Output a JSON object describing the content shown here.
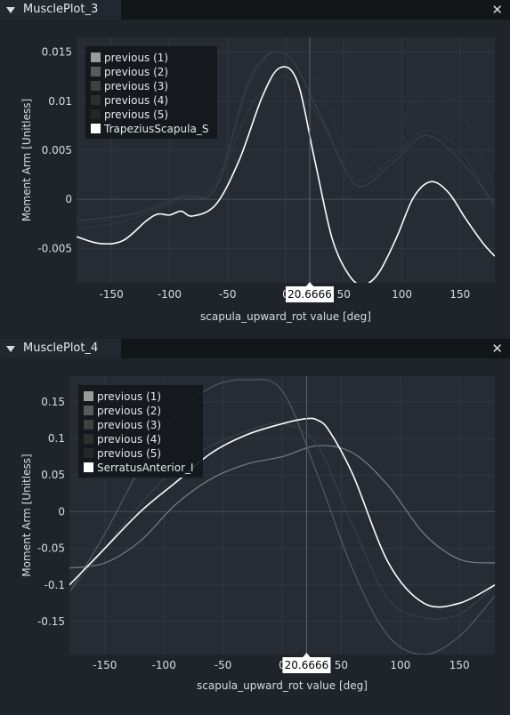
{
  "panels": [
    {
      "title": "MusclePlot_3",
      "close_label": "✕",
      "chart_data": {
        "type": "line",
        "xlabel": "scapula_upward_rot value [deg]",
        "ylabel": "Moment Arm [Unitless]",
        "xlim": [
          -180,
          180
        ],
        "ylim": [
          -0.0085,
          0.0165
        ],
        "x_ticks": [
          "-150",
          "-100",
          "-50",
          "0",
          "50",
          "100",
          "150"
        ],
        "y_ticks": [
          "0.015",
          "0.01",
          "0.005",
          "0",
          "-0.005"
        ],
        "cursor_value": "20.6666",
        "grid": true,
        "legend": [
          "previous (1)",
          "previous (2)",
          "previous (3)",
          "previous (4)",
          "previous (5)",
          "TrapeziusScapula_S"
        ],
        "series": [
          {
            "name": "previous (5)",
            "x": [
              -180,
              -150,
              -120,
              -90,
              -60,
              -30,
              0,
              30,
              60,
              90,
              120,
              150,
              180
            ],
            "y": [
              -0.0025,
              -0.002,
              -0.001,
              0.0005,
              0.002,
              0.012,
              0.0155,
              0.011,
              0.003,
              0.006,
              0.011,
              0.009,
              0.001
            ]
          },
          {
            "name": "previous (4)",
            "x": [
              -180,
              -150,
              -120,
              -90,
              -60,
              -30,
              0,
              30,
              60,
              90,
              120,
              150,
              180
            ],
            "y": [
              -0.003,
              -0.0025,
              -0.0015,
              0,
              0.0015,
              0.0095,
              0.0125,
              0.008,
              0.002,
              0.004,
              0.007,
              0.005,
              -0.001
            ]
          },
          {
            "name": "previous (3)",
            "x": [
              -180,
              -150,
              -120,
              -90,
              -60,
              -30,
              0,
              30,
              60,
              90,
              120,
              150,
              180
            ],
            "y": [
              -0.0022,
              -0.0018,
              -0.0012,
              0.0003,
              0.0012,
              0.0125,
              0.0148,
              0.0085,
              0.0015,
              0.0035,
              0.0065,
              0.004,
              -0.0005
            ]
          },
          {
            "name": "TrapeziusScapula_S",
            "x": [
              -180,
              -160,
              -140,
              -120,
              -110,
              -100,
              -90,
              -80,
              -60,
              -40,
              -20,
              -5,
              10,
              25,
              40,
              55,
              67,
              80,
              95,
              110,
              125,
              140,
              155,
              170,
              180
            ],
            "y": [
              -0.0038,
              -0.0045,
              -0.0042,
              -0.0022,
              -0.0015,
              -0.0016,
              -0.0012,
              -0.0017,
              -0.0005,
              0.004,
              0.0105,
              0.0134,
              0.012,
              0.004,
              -0.004,
              -0.0078,
              -0.0087,
              -0.0075,
              -0.004,
              0.0002,
              0.0018,
              0.0007,
              -0.002,
              -0.0045,
              -0.0058
            ]
          }
        ]
      }
    },
    {
      "title": "MusclePlot_4",
      "close_label": "✕",
      "chart_data": {
        "type": "line",
        "xlabel": "scapula_upward_rot value [deg]",
        "ylabel": "Moment Arm [Unitless]",
        "xlim": [
          -180,
          180
        ],
        "ylim": [
          -0.195,
          0.185
        ],
        "x_ticks": [
          "-150",
          "-100",
          "-50",
          "0",
          "50",
          "100",
          "150"
        ],
        "y_ticks": [
          "0.15",
          "0.1",
          "0.05",
          "0",
          "-0.05",
          "-0.1",
          "-0.15"
        ],
        "cursor_value": "20.6666",
        "grid": true,
        "legend": [
          "previous (1)",
          "previous (2)",
          "previous (3)",
          "previous (4)",
          "previous (5)",
          "SerratusAnterior_I"
        ],
        "series": [
          {
            "name": "previous (1)",
            "x": [
              -180,
              -150,
              -120,
              -90,
              -60,
              -30,
              0,
              30,
              60,
              90,
              120,
              150,
              180
            ],
            "y": [
              -0.077,
              -0.07,
              -0.04,
              0.01,
              0.045,
              0.065,
              0.075,
              0.09,
              0.08,
              0.035,
              -0.03,
              -0.065,
              -0.07
            ]
          },
          {
            "name": "previous (2)",
            "x": [
              -180,
              -150,
              -120,
              -90,
              -60,
              -30,
              0,
              30,
              60,
              90,
              120,
              150,
              180
            ],
            "y": [
              -0.11,
              -0.03,
              0.06,
              0.13,
              0.17,
              0.18,
              0.165,
              0.05,
              -0.08,
              -0.17,
              -0.195,
              -0.17,
              -0.115
            ]
          },
          {
            "name": "previous (3)",
            "x": [
              -180,
              -150,
              -120,
              -90,
              -60,
              -30,
              0,
              30,
              60,
              90,
              120,
              150,
              180
            ],
            "y": [
              -0.11,
              -0.05,
              0.01,
              0.06,
              0.09,
              0.11,
              0.12,
              0.09,
              -0.02,
              -0.12,
              -0.145,
              -0.14,
              -0.1
            ]
          },
          {
            "name": "SerratusAnterior_I",
            "x": [
              -180,
              -150,
              -120,
              -90,
              -60,
              -30,
              0,
              20,
              30,
              40,
              60,
              90,
              120,
              150,
              180
            ],
            "y": [
              -0.1,
              -0.05,
              0.0,
              0.04,
              0.08,
              0.105,
              0.12,
              0.127,
              0.125,
              0.11,
              0.05,
              -0.07,
              -0.125,
              -0.125,
              -0.1
            ]
          }
        ]
      }
    }
  ],
  "colors": {
    "background": "#1f242b",
    "plot_bg": "#262b34",
    "main_series": "#ffffff",
    "grid": "#323844"
  }
}
